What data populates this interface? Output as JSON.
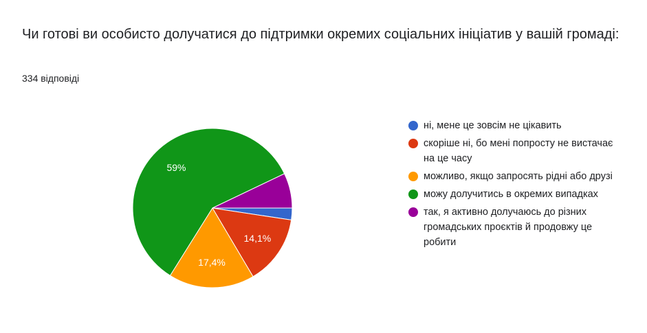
{
  "title": "Чи готові ви особисто долучатися до підтримки окремих соціальних ініціатив у вашій громаді:",
  "subtitle": "334 відповіді",
  "chart_data": {
    "type": "pie",
    "title": "Чи готові ви особисто долучатися до підтримки окремих соціальних ініціатив у вашій громаді:",
    "slices": [
      {
        "label": "ні, мене це зовсім не цікавить",
        "value": 2.4,
        "color": "#3366cc",
        "data_label": ""
      },
      {
        "label": "скоріше ні, бо мені попросту не вистачає на це часу",
        "value": 14.1,
        "color": "#dc3912",
        "data_label": "14,1%"
      },
      {
        "label": "можливо, якщо запросять рідні або друзі",
        "value": 17.4,
        "color": "#ff9900",
        "data_label": "17,4%"
      },
      {
        "label": "можу долучитись в окремих випадках",
        "value": 59,
        "color": "#109618",
        "data_label": "59%"
      },
      {
        "label": "так, я активно долучаюсь до різних громадських проєктів й продовжу це робити",
        "value": 7.1,
        "color": "#990099",
        "data_label": ""
      }
    ],
    "legend_position": "right"
  }
}
